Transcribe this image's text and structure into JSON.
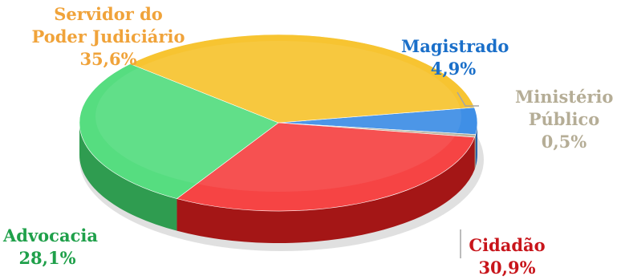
{
  "chart_data": {
    "type": "pie",
    "title": "",
    "style": "3d-tilted",
    "legend": "none",
    "slices": [
      {
        "name": "Servidor do Poder Judiciário",
        "name_lines": [
          "Servidor do",
          "Poder Judiciário"
        ],
        "value": 35.6,
        "value_label": "35,6%",
        "color": "#f7c431",
        "side_color": "#c8951b",
        "label_color": "#f0a33a"
      },
      {
        "name": "Magistrado",
        "name_lines": [
          "Magistrado"
        ],
        "value": 4.9,
        "value_label": "4,9%",
        "color": "#3f8fe6",
        "side_color": "#2a64a8",
        "label_color": "#1a6fc9"
      },
      {
        "name": "Ministério Público",
        "name_lines": [
          "Ministério",
          "Público"
        ],
        "value": 0.5,
        "value_label": "0,5%",
        "color": "#b9b39e",
        "side_color": "#8c8775",
        "label_color": "#b5ad96"
      },
      {
        "name": "Cidadão",
        "name_lines": [
          "Cidadão"
        ],
        "value": 30.9,
        "value_label": "30,9%",
        "color": "#f64444",
        "side_color": "#a41616",
        "label_color": "#c8151b"
      },
      {
        "name": "Advocacia",
        "name_lines": [
          "Advocacia"
        ],
        "value": 28.1,
        "value_label": "28,1%",
        "color": "#56dd80",
        "side_color": "#2f9c50",
        "label_color": "#1fa04a"
      }
    ]
  }
}
